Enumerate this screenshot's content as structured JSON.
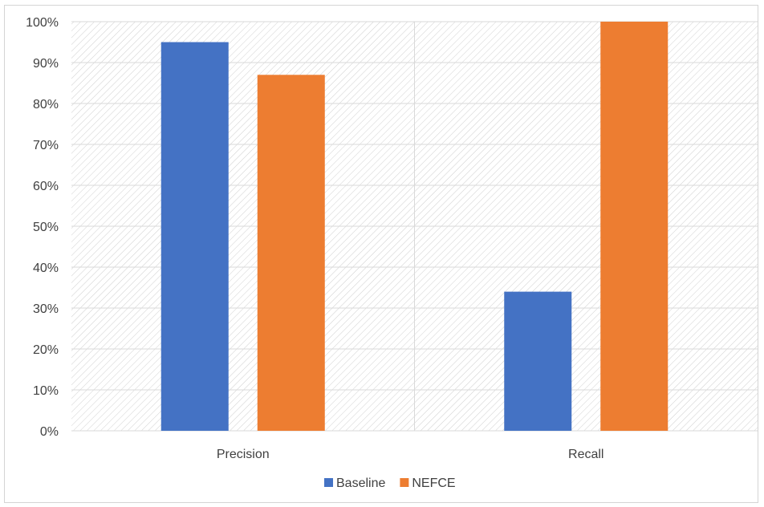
{
  "chart_data": {
    "type": "bar",
    "categories": [
      "Precision",
      "Recall"
    ],
    "series": [
      {
        "name": "Baseline",
        "values": [
          95,
          34
        ],
        "color": "#4472C4"
      },
      {
        "name": "NEFCE",
        "values": [
          87,
          100
        ],
        "color": "#ED7D31"
      }
    ],
    "y_unit": "%",
    "ylim": [
      0,
      100
    ],
    "yticks": [
      0,
      10,
      20,
      30,
      40,
      50,
      60,
      70,
      80,
      90,
      100
    ],
    "grid": true,
    "legend_position": "bottom",
    "background_pattern": "diagonal hatch"
  }
}
